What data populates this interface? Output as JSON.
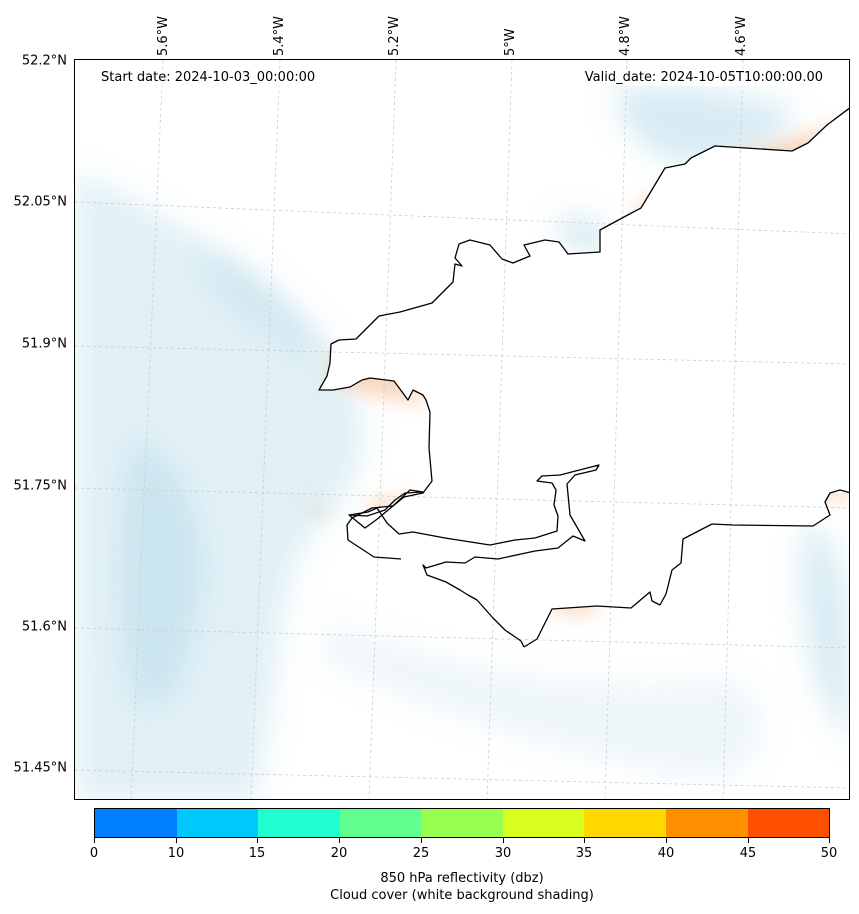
{
  "map": {
    "start_date": "Start date: 2024-10-03_00:00:00",
    "valid_date": "Valid_date: 2024-10-05T10:00:00.00",
    "lat_labels": [
      "52.2°N",
      "52.05°N",
      "51.9°N",
      "51.75°N",
      "51.6°N",
      "51.45°N"
    ],
    "lon_labels": [
      "5.6°W",
      "5.4°W",
      "5.2°W",
      "5°W",
      "4.8°W",
      "4.6°W"
    ],
    "coastline_color": "#000000",
    "gridline_color": "#cccccc",
    "cloud_color": "#a8d4e4",
    "reflectivity_color": "#f2a56a"
  },
  "colorbar": {
    "title_line1": "850 hPa reflectivity (dbz)",
    "title_line2": "Cloud cover (white background shading)",
    "ticks": [
      "0",
      "10",
      "15",
      "20",
      "25",
      "30",
      "35",
      "40",
      "45",
      "50"
    ],
    "colors": [
      "#0080ff",
      "#00c8ff",
      "#20ffd0",
      "#60ff90",
      "#98ff50",
      "#d8ff20",
      "#ffd800",
      "#ff9000",
      "#ff5000"
    ]
  }
}
